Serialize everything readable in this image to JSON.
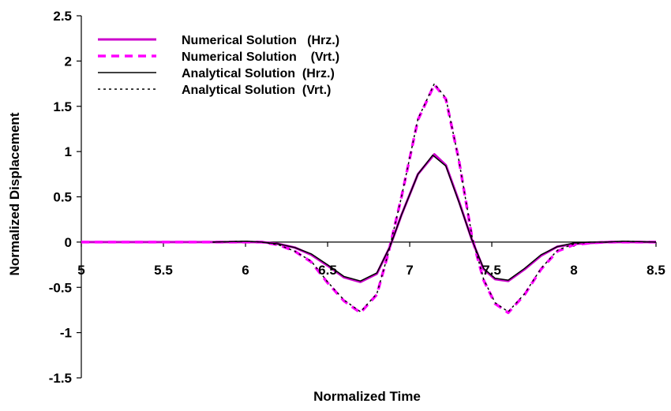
{
  "chart_data": {
    "type": "line",
    "title": "",
    "xlabel": "Normalized Time",
    "ylabel": "Normalized Displacement",
    "xlim": [
      5,
      8.5
    ],
    "ylim": [
      -1.5,
      2.5
    ],
    "x_ticks": [
      "5",
      "5.5",
      "6",
      "6.5",
      "7",
      "7.5",
      "8",
      "8.5"
    ],
    "y_ticks": [
      "2.5",
      "2",
      "1.5",
      "1",
      "0.5",
      "0",
      "-0.5",
      "-1",
      "-1.5"
    ],
    "grid": false,
    "legend_position": "top-left",
    "series": [
      {
        "name": "Numerical Solution   (Hrz.)",
        "color": "#cc00cc",
        "style": "solid-thick",
        "points": [
          [
            5.0,
            0
          ],
          [
            5.5,
            0
          ],
          [
            5.8,
            0
          ],
          [
            6.0,
            0
          ],
          [
            6.1,
            0
          ],
          [
            6.2,
            -0.02
          ],
          [
            6.3,
            -0.06
          ],
          [
            6.4,
            -0.14
          ],
          [
            6.5,
            -0.26
          ],
          [
            6.6,
            -0.39
          ],
          [
            6.7,
            -0.44
          ],
          [
            6.8,
            -0.35
          ],
          [
            6.88,
            -0.05
          ],
          [
            6.95,
            0.3
          ],
          [
            7.05,
            0.75
          ],
          [
            7.15,
            0.97
          ],
          [
            7.22,
            0.85
          ],
          [
            7.3,
            0.45
          ],
          [
            7.38,
            0.02
          ],
          [
            7.45,
            -0.3
          ],
          [
            7.52,
            -0.41
          ],
          [
            7.6,
            -0.43
          ],
          [
            7.7,
            -0.3
          ],
          [
            7.8,
            -0.15
          ],
          [
            7.9,
            -0.05
          ],
          [
            8.0,
            -0.02
          ],
          [
            8.1,
            -0.01
          ],
          [
            8.2,
            0
          ],
          [
            8.3,
            0
          ],
          [
            8.5,
            0
          ]
        ]
      },
      {
        "name": "Numerical Solution    (Vrt.)",
        "color": "#ff00ff",
        "style": "dashed-thick",
        "points": [
          [
            5.0,
            0
          ],
          [
            5.5,
            0
          ],
          [
            5.8,
            0
          ],
          [
            6.0,
            0
          ],
          [
            6.1,
            0
          ],
          [
            6.2,
            -0.03
          ],
          [
            6.3,
            -0.1
          ],
          [
            6.4,
            -0.22
          ],
          [
            6.5,
            -0.45
          ],
          [
            6.6,
            -0.65
          ],
          [
            6.7,
            -0.78
          ],
          [
            6.8,
            -0.58
          ],
          [
            6.87,
            -0.12
          ],
          [
            6.95,
            0.5
          ],
          [
            7.05,
            1.35
          ],
          [
            7.15,
            1.74
          ],
          [
            7.22,
            1.58
          ],
          [
            7.3,
            0.9
          ],
          [
            7.38,
            0.05
          ],
          [
            7.45,
            -0.42
          ],
          [
            7.52,
            -0.68
          ],
          [
            7.6,
            -0.78
          ],
          [
            7.7,
            -0.58
          ],
          [
            7.8,
            -0.3
          ],
          [
            7.9,
            -0.1
          ],
          [
            8.0,
            -0.03
          ],
          [
            8.1,
            -0.01
          ],
          [
            8.2,
            0
          ],
          [
            8.3,
            0
          ],
          [
            8.5,
            0
          ]
        ]
      },
      {
        "name": "Analytical Solution  (Hrz.)",
        "color": "#000000",
        "style": "solid-thin",
        "points": [
          [
            5.8,
            0
          ],
          [
            6.0,
            0.01
          ],
          [
            6.1,
            0
          ],
          [
            6.2,
            -0.02
          ],
          [
            6.3,
            -0.06
          ],
          [
            6.4,
            -0.13
          ],
          [
            6.5,
            -0.25
          ],
          [
            6.6,
            -0.38
          ],
          [
            6.7,
            -0.43
          ],
          [
            6.8,
            -0.34
          ],
          [
            6.88,
            -0.05
          ],
          [
            6.95,
            0.3
          ],
          [
            7.05,
            0.75
          ],
          [
            7.14,
            0.96
          ],
          [
            7.22,
            0.84
          ],
          [
            7.3,
            0.44
          ],
          [
            7.38,
            0.02
          ],
          [
            7.45,
            -0.29
          ],
          [
            7.52,
            -0.4
          ],
          [
            7.6,
            -0.42
          ],
          [
            7.7,
            -0.29
          ],
          [
            7.8,
            -0.14
          ],
          [
            7.9,
            -0.05
          ],
          [
            8.0,
            -0.01
          ],
          [
            8.1,
            0
          ],
          [
            8.2,
            0
          ],
          [
            8.3,
            0.01
          ],
          [
            8.5,
            0
          ]
        ]
      },
      {
        "name": "Analytical Solution  (Vrt.)",
        "color": "#000000",
        "style": "dotted-thin",
        "points": [
          [
            5.8,
            0
          ],
          [
            6.0,
            0.01
          ],
          [
            6.1,
            0
          ],
          [
            6.2,
            -0.03
          ],
          [
            6.3,
            -0.1
          ],
          [
            6.4,
            -0.21
          ],
          [
            6.5,
            -0.44
          ],
          [
            6.6,
            -0.64
          ],
          [
            6.7,
            -0.77
          ],
          [
            6.8,
            -0.57
          ],
          [
            6.87,
            -0.12
          ],
          [
            6.95,
            0.5
          ],
          [
            7.05,
            1.36
          ],
          [
            7.15,
            1.75
          ],
          [
            7.22,
            1.59
          ],
          [
            7.3,
            0.9
          ],
          [
            7.38,
            0.06
          ],
          [
            7.45,
            -0.41
          ],
          [
            7.52,
            -0.67
          ],
          [
            7.6,
            -0.77
          ],
          [
            7.7,
            -0.57
          ],
          [
            7.8,
            -0.29
          ],
          [
            7.9,
            -0.09
          ],
          [
            8.0,
            -0.02
          ],
          [
            8.1,
            0
          ],
          [
            8.2,
            0
          ],
          [
            8.3,
            0.01
          ],
          [
            8.5,
            0
          ]
        ]
      }
    ]
  }
}
